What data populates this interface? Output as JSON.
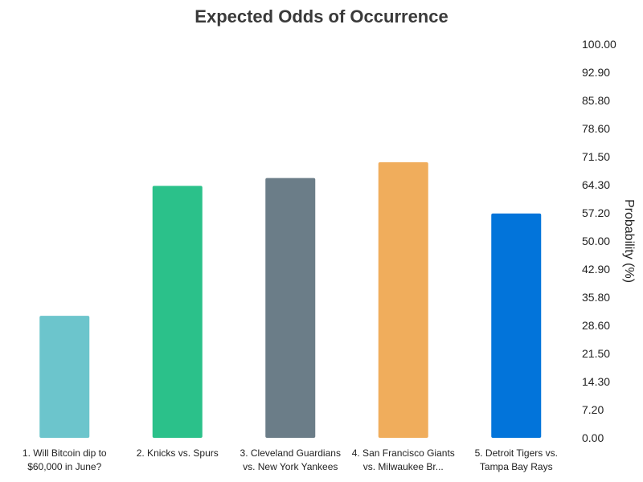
{
  "chart_data": {
    "type": "bar",
    "title": "Expected Odds of Occurrence",
    "xlabel": "",
    "ylabel": "Probability (%)",
    "ylim": [
      0,
      100
    ],
    "y_ticks": [
      "0.00",
      "7.20",
      "14.30",
      "21.50",
      "28.60",
      "35.80",
      "42.90",
      "50.00",
      "57.20",
      "64.30",
      "71.50",
      "78.60",
      "85.80",
      "92.90",
      "100.00"
    ],
    "y_axis_position": "right",
    "grid": false,
    "categories": [
      [
        "1. Will Bitcoin dip to",
        "$60,000 in June?"
      ],
      [
        "2. Knicks vs. Spurs"
      ],
      [
        "3. Cleveland Guardians",
        "vs. New York Yankees"
      ],
      [
        "4. San Francisco Giants",
        "vs. Milwaukee Br..."
      ],
      [
        "5. Detroit Tigers vs.",
        "Tampa Bay Rays"
      ]
    ],
    "values": [
      31,
      64,
      66,
      70,
      57
    ],
    "colors": [
      "#6cc5cc",
      "#2bc18a",
      "#6b7d88",
      "#f0ad5c",
      "#0274da"
    ]
  }
}
